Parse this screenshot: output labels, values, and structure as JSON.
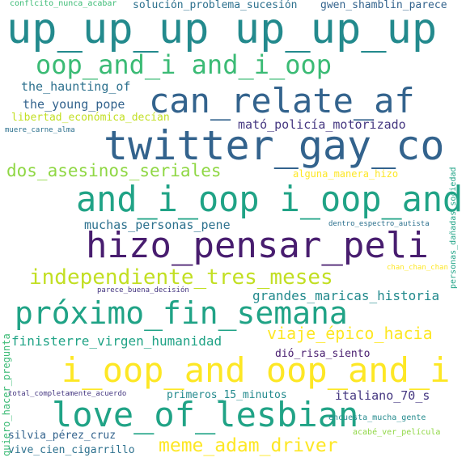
{
  "colors": {
    "background": "#ffffff",
    "dark_purple": "#481d6f",
    "indigo": "#453781",
    "blue": "#33638d",
    "teal_blue": "#2d718e",
    "teal": "#238a8d",
    "green_teal": "#20a386",
    "green": "#3bbb75",
    "lime": "#8fd744",
    "yellow_green": "#c2df23",
    "yellow": "#fde725"
  },
  "words": {
    "up": "up_up_up up_up_up",
    "oop": "oop_and_i and_i_oop",
    "haunting": "the_haunting_of",
    "can_relate": "can_relate_af",
    "young_pope": "the_young_pope",
    "libertad": "libertad_económica_decían",
    "mato": "mató_policía_motorizado",
    "muere": "muere_carne_alma",
    "twitter": "twitter_gay_co",
    "dos_asesinos": "dos_asesinos_seriales",
    "alguna": "alguna_manera_hizo",
    "andioop": "and_i_oop i_oop_and",
    "muchas": "muchas_personas_pene",
    "dentro": "dentro_espectro_autista",
    "hizo": "hizo_pensar_peli",
    "chan": "chan_chan_chan",
    "independiente": "independiente_tres_meses",
    "parece": "parece_buena_decisión",
    "grandes": "grandes_maricas_historia",
    "proximo": "próximo_fin_semana",
    "viaje": "viaje_épico_hacia",
    "finisterre": "finisterre_virgen_humanidad",
    "dio": "dió_risa_siento",
    "ioop": "i_oop_and oop_and_i",
    "total": "total_completamente_acuerdo",
    "primeros": "primeros_15_minutos",
    "italiano": "italiano_70_s",
    "love": "love_of_lesbian",
    "encuesta": "encuesta_mucha_gente",
    "acabe": "acabé_ver_película",
    "silvia": "silvia_pérez_cruz",
    "meme": "meme_adam_driver",
    "vive": "vive_cien_cigarrillo",
    "conflicto": "conflcito_nunca_acabar",
    "solucion": "solución_problema_sucesión",
    "gwen": "gwen_shamblin_parece",
    "quiero": "quiero_hacer_pregunta",
    "personas": "personas_dañadas_sociedad"
  }
}
